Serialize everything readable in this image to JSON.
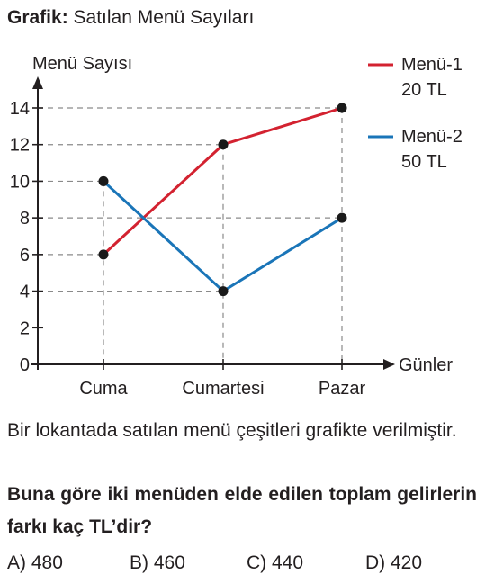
{
  "header": {
    "title_bold": "Grafik:",
    "title_text": "Satılan Menü Sayıları"
  },
  "chart_data": {
    "type": "line",
    "ylabel": "Menü Sayısı",
    "xlabel": "Günler",
    "categories": [
      "Cuma",
      "Cumartesi",
      "Pazar"
    ],
    "yticks": [
      0,
      2,
      4,
      6,
      8,
      10,
      12,
      14
    ],
    "ylim": [
      0,
      14
    ],
    "series": [
      {
        "name": "Menü-1",
        "sublabel": "20 TL",
        "color": "#d32230",
        "values": [
          6,
          12,
          14
        ]
      },
      {
        "name": "Menü-2",
        "sublabel": "50 TL",
        "color": "#1a75b8",
        "values": [
          10,
          4,
          8
        ]
      }
    ],
    "legend_position": "top-right",
    "grid": "dashed guide lines to points"
  },
  "question": {
    "text": "Bir lokantada satılan menü çeşitleri grafikte verilmiştir.",
    "prompt": "Buna göre iki menüden elde edilen toplam gelirlerin farkı kaç TL’dir?",
    "choices": [
      "A) 480",
      "B) 460",
      "C) 440",
      "D) 420"
    ]
  }
}
